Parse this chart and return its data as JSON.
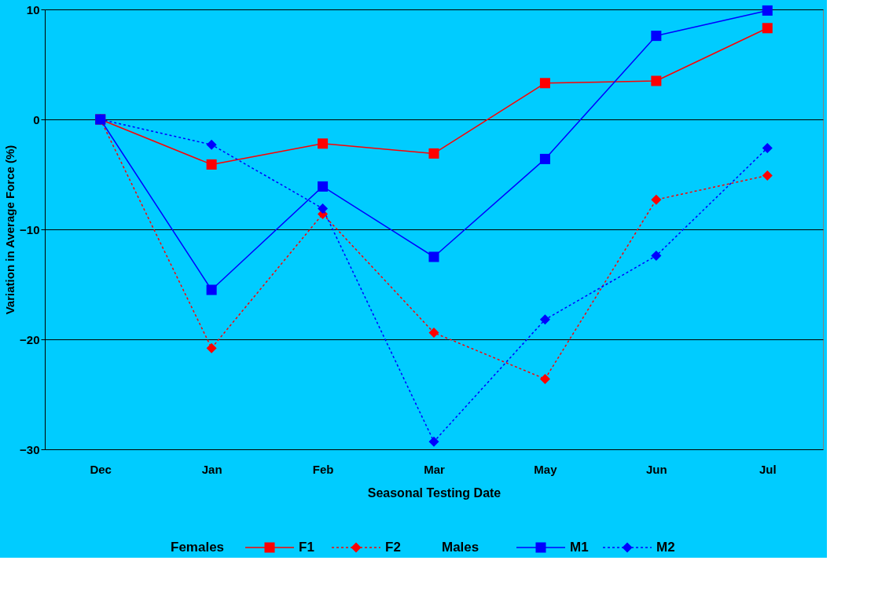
{
  "chart_data": {
    "type": "line",
    "xlabel": "Seasonal Testing Date",
    "ylabel": "Variation in Average Force (%)",
    "categories": [
      "Dec",
      "Jan",
      "Feb",
      "Mar",
      "May",
      "Jun",
      "Jul"
    ],
    "series": [
      {
        "name": "F1",
        "color": "#ff0000",
        "marker": "square",
        "line_style": "solid",
        "values": [
          0,
          -4.1,
          -2.2,
          -3.1,
          3.3,
          3.5,
          8.3
        ]
      },
      {
        "name": "F2",
        "color": "#ff0000",
        "marker": "diamond",
        "line_style": "dotted",
        "values": [
          0,
          -20.8,
          -8.6,
          -19.4,
          -23.6,
          -7.3,
          -5.1
        ]
      },
      {
        "name": "M1",
        "color": "#0000ff",
        "marker": "square",
        "line_style": "solid",
        "values": [
          0,
          -15.5,
          -6.1,
          -12.5,
          -3.6,
          7.6,
          9.9
        ]
      },
      {
        "name": "M2",
        "color": "#0000ff",
        "marker": "diamond",
        "line_style": "dotted",
        "values": [
          0,
          -2.3,
          -8.1,
          -29.3,
          -18.2,
          -12.4,
          -2.6
        ]
      }
    ],
    "annotations": [
      "Females",
      "Males"
    ],
    "ylim": [
      -30,
      10
    ],
    "yticks": [
      -30,
      -20,
      -10,
      0,
      10
    ],
    "grid": "y",
    "legend": "bottom"
  }
}
